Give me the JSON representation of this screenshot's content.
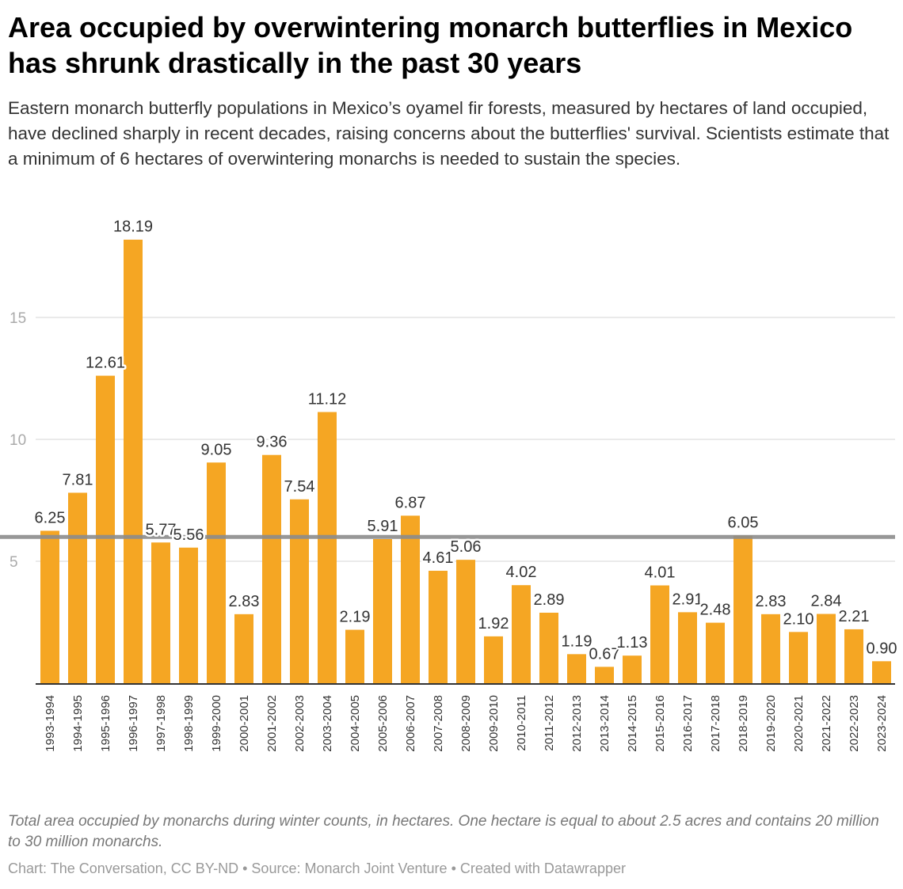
{
  "title": "Area occupied by overwintering monarch butterflies in Mexico has shrunk drastically in the past 30 years",
  "subtitle": "Eastern monarch butterfly populations in Mexico’s oyamel fir forests, measured by hectares of land occupied, have declined sharply in recent decades, raising concerns about the butterflies' survival. Scientists estimate that a minimum of 6 hectares of overwintering monarchs is needed to sustain the species.",
  "notes": "Total area occupied by monarchs during winter counts, in hectares. One hectare is equal to about 2.5 acres and contains 20 million to 30 million monarchs.",
  "source": "Chart: The Conversation, CC BY-ND • Source: Monarch Joint Venture • Created with Datawrapper",
  "chart_data": {
    "type": "bar",
    "title": "Area occupied by overwintering monarch butterflies in Mexico has shrunk drastically in the past 30 years",
    "xlabel": "",
    "ylabel": "",
    "ylim": [
      0,
      18.19
    ],
    "yticks": [
      5,
      10,
      15
    ],
    "grid": true,
    "bar_color": "#f5a623",
    "reference_line": {
      "value": 6,
      "color": "#8c8c8c"
    },
    "categories": [
      "1993-1994",
      "1994-1995",
      "1995-1996",
      "1996-1997",
      "1997-1998",
      "1998-1999",
      "1999-2000",
      "2000-2001",
      "2001-2002",
      "2002-2003",
      "2003-2004",
      "2004-2005",
      "2005-2006",
      "2006-2007",
      "2007-2008",
      "2008-2009",
      "2009-2010",
      "2010-2011",
      "2011-2012",
      "2012-2013",
      "2013-2014",
      "2014-2015",
      "2015-2016",
      "2016-2017",
      "2017-2018",
      "2018-2019",
      "2019-2020",
      "2020-2021",
      "2021-2022",
      "2022-2023",
      "2023-2024"
    ],
    "values": [
      6.25,
      7.81,
      12.61,
      18.19,
      5.77,
      5.56,
      9.05,
      2.83,
      9.36,
      7.54,
      11.12,
      2.19,
      5.91,
      6.87,
      4.61,
      5.06,
      1.92,
      4.02,
      2.89,
      1.19,
      0.67,
      1.13,
      4.01,
      2.91,
      2.48,
      6.05,
      2.83,
      2.1,
      2.84,
      2.21,
      0.9
    ],
    "value_labels": [
      "6.25",
      "7.81",
      "12.61",
      "18.19",
      "5.77",
      "5.56",
      "9.05",
      "2.83",
      "9.36",
      "7.54",
      "11.12",
      "2.19",
      "5.91",
      "6.87",
      "4.61",
      "5.06",
      "1.92",
      "4.02",
      "2.89",
      "1.19",
      "0.67",
      "1.13",
      "4.01",
      "2.91",
      "2.48",
      "6.05",
      "2.83",
      "2.10",
      "2.84",
      "2.21",
      "0.90"
    ]
  }
}
